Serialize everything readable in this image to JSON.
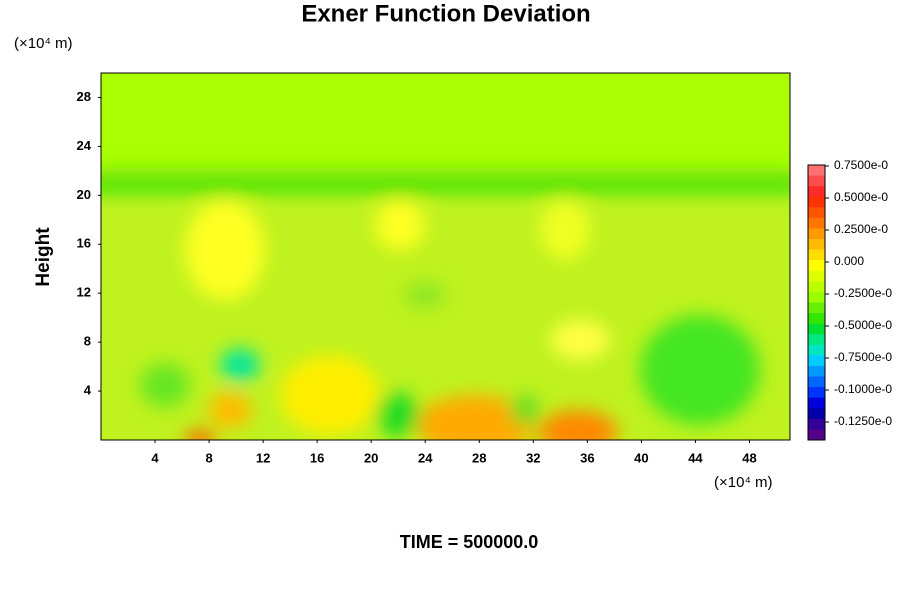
{
  "chart_data": {
    "type": "contour",
    "title": "Exner Function Deviation",
    "ylabel": "Height",
    "y_unit": "(×10⁴ m)",
    "x_unit": "(×10⁴ m)",
    "footer": "TIME = 500000.0",
    "xlim": [
      0,
      51
    ],
    "xticks": [
      4,
      8,
      12,
      16,
      20,
      24,
      28,
      32,
      36,
      40,
      44,
      48
    ],
    "ylim": [
      0,
      30
    ],
    "yticks": [
      4,
      8,
      12,
      16,
      20,
      24,
      28
    ],
    "colorbar_labels": [
      "0.7500e-0",
      "0.5000e-0",
      "0.2500e-0",
      "0.000",
      "-0.2500e-0",
      "-0.5000e-0",
      "-0.7500e-0",
      "-0.1000e-0",
      "-0.1250e-0"
    ],
    "colormap": [
      "#ff7070",
      "#ff4c4c",
      "#ff2a2a",
      "#ff3300",
      "#ff5500",
      "#ff7700",
      "#ff9900",
      "#ffbb00",
      "#ffdd00",
      "#ffff00",
      "#ddff00",
      "#bbff00",
      "#99ff00",
      "#66f000",
      "#33e600",
      "#00e033",
      "#00e680",
      "#00e6c0",
      "#00ccff",
      "#0099ff",
      "#0066ff",
      "#0033ff",
      "#0000dd",
      "#0000aa",
      "#330099",
      "#550088"
    ]
  }
}
